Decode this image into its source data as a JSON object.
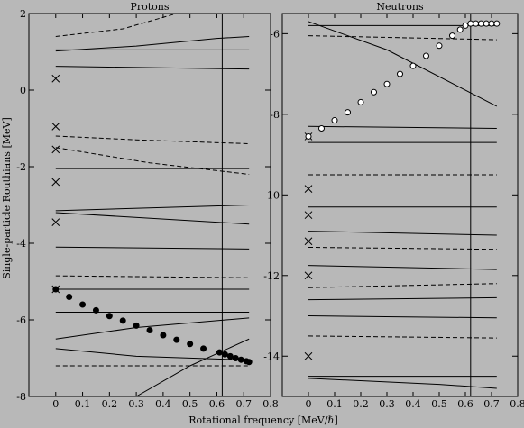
{
  "chart_data": [
    {
      "type": "line",
      "title": "Protons",
      "xlabel": "Rotational frequency [MeV/ℏ]",
      "ylabel": "Single-particle Routhians [MeV]",
      "xlim": [
        -0.1,
        0.8
      ],
      "ylim": [
        -8,
        2
      ],
      "xticks": [
        "0",
        "0.1",
        "0.2",
        "0.3",
        "0.4",
        "0.5",
        "0.6",
        "0.7",
        "0.8"
      ],
      "yticks": [
        "2",
        "0",
        "-2",
        "-4",
        "-6",
        "-8"
      ],
      "grid": false,
      "vline_x": 0.62,
      "series": [
        {
          "style": "solid",
          "x": [
            0,
            0.72
          ],
          "y": [
            1.05,
            1.05
          ]
        },
        {
          "style": "solid",
          "x": [
            0,
            0.72
          ],
          "y": [
            0.62,
            0.55
          ]
        },
        {
          "style": "solid",
          "x": [
            0,
            0.3,
            0.6,
            0.72
          ],
          "y": [
            1.02,
            1.15,
            1.35,
            1.4
          ]
        },
        {
          "style": "solid",
          "x": [
            0,
            0.72
          ],
          "y": [
            -2.05,
            -2.05
          ]
        },
        {
          "style": "solid",
          "x": [
            0,
            0.72
          ],
          "y": [
            -3.15,
            -3.0
          ]
        },
        {
          "style": "solid",
          "x": [
            0,
            0.72
          ],
          "y": [
            -3.2,
            -3.5
          ]
        },
        {
          "style": "solid",
          "x": [
            0,
            0.72
          ],
          "y": [
            -4.1,
            -4.15
          ]
        },
        {
          "style": "solid",
          "x": [
            0,
            0.72
          ],
          "y": [
            -5.2,
            -5.2
          ]
        },
        {
          "style": "solid",
          "x": [
            0,
            0.72
          ],
          "y": [
            -5.8,
            -5.8
          ]
        },
        {
          "style": "solid",
          "x": [
            0,
            0.3,
            0.72
          ],
          "y": [
            -6.5,
            -6.2,
            -5.95
          ]
        },
        {
          "style": "solid",
          "x": [
            0,
            0.3,
            0.72
          ],
          "y": [
            -6.75,
            -6.95,
            -7.05
          ]
        },
        {
          "style": "solid",
          "x": [
            0.3,
            0.5,
            0.72
          ],
          "y": [
            -8.0,
            -7.2,
            -6.5
          ]
        },
        {
          "style": "dashed",
          "x": [
            0,
            0.72
          ],
          "y": [
            -7.2,
            -7.2
          ]
        },
        {
          "style": "dashed",
          "x": [
            0,
            0.3,
            0.72
          ],
          "y": [
            -1.2,
            -1.3,
            -1.4
          ]
        },
        {
          "style": "dashed",
          "x": [
            0,
            0.72
          ],
          "y": [
            -4.85,
            -4.9
          ]
        },
        {
          "style": "dashed",
          "x": [
            0,
            0.25,
            0.45
          ],
          "y": [
            1.4,
            1.6,
            2.0
          ]
        },
        {
          "style": "dashed",
          "x": [
            0,
            0.35,
            0.72
          ],
          "y": [
            -1.5,
            -1.9,
            -2.2
          ]
        }
      ],
      "markers": {
        "style": "filled",
        "x": [
          0,
          0.05,
          0.1,
          0.15,
          0.2,
          0.25,
          0.3,
          0.35,
          0.4,
          0.45,
          0.5,
          0.55,
          0.61,
          0.63,
          0.65,
          0.67,
          0.69,
          0.71,
          0.72
        ],
        "y": [
          -5.2,
          -5.4,
          -5.6,
          -5.75,
          -5.9,
          -6.02,
          -6.15,
          -6.27,
          -6.4,
          -6.52,
          -6.63,
          -6.75,
          -6.85,
          -6.9,
          -6.95,
          -7.0,
          -7.04,
          -7.08,
          -7.1
        ]
      },
      "crosses": {
        "x": [
          0,
          0,
          0,
          0,
          0,
          0
        ],
        "y": [
          0.3,
          -0.95,
          -1.55,
          -2.4,
          -3.45,
          -5.2
        ]
      }
    },
    {
      "type": "line",
      "title": "Neutrons",
      "xlim": [
        -0.1,
        0.8
      ],
      "ylim": [
        -15,
        -5.5
      ],
      "xticks": [
        "0",
        "0.1",
        "0.2",
        "0.3",
        "0.4",
        "0.5",
        "0.6",
        "0.7",
        "0.8"
      ],
      "yticks": [
        "-6",
        "-8",
        "-10",
        "-12",
        "-14"
      ],
      "grid": false,
      "vline_x": 0.62,
      "series": [
        {
          "style": "solid",
          "x": [
            0,
            0.72
          ],
          "y": [
            -5.8,
            -5.8
          ]
        },
        {
          "style": "solid",
          "x": [
            0,
            0.3,
            0.72
          ],
          "y": [
            -5.7,
            -6.4,
            -7.8
          ]
        },
        {
          "style": "solid",
          "x": [
            0,
            0.72
          ],
          "y": [
            -8.3,
            -8.35
          ]
        },
        {
          "style": "solid",
          "x": [
            0,
            0.72
          ],
          "y": [
            -8.7,
            -8.7
          ]
        },
        {
          "style": "solid",
          "x": [
            0,
            0.72
          ],
          "y": [
            -10.3,
            -10.3
          ]
        },
        {
          "style": "solid",
          "x": [
            0,
            0.72
          ],
          "y": [
            -10.9,
            -11.0
          ]
        },
        {
          "style": "solid",
          "x": [
            0,
            0.72
          ],
          "y": [
            -11.75,
            -11.85
          ]
        },
        {
          "style": "solid",
          "x": [
            0,
            0.72
          ],
          "y": [
            -12.6,
            -12.55
          ]
        },
        {
          "style": "solid",
          "x": [
            0,
            0.72
          ],
          "y": [
            -13.0,
            -13.05
          ]
        },
        {
          "style": "solid",
          "x": [
            0,
            0.72
          ],
          "y": [
            -14.5,
            -14.5
          ]
        },
        {
          "style": "solid",
          "x": [
            0,
            0.5,
            0.72
          ],
          "y": [
            -14.55,
            -14.7,
            -14.8
          ]
        },
        {
          "style": "dashed",
          "x": [
            0,
            0.72
          ],
          "y": [
            -6.05,
            -6.15
          ]
        },
        {
          "style": "dashed",
          "x": [
            0,
            0.72
          ],
          "y": [
            -9.5,
            -9.5
          ]
        },
        {
          "style": "dashed",
          "x": [
            0,
            0.72
          ],
          "y": [
            -11.3,
            -11.35
          ]
        },
        {
          "style": "dashed",
          "x": [
            0,
            0.72
          ],
          "y": [
            -12.3,
            -12.2
          ]
        },
        {
          "style": "dashed",
          "x": [
            0,
            0.72
          ],
          "y": [
            -13.5,
            -13.55
          ]
        }
      ],
      "markers": {
        "style": "open",
        "x": [
          0,
          0.05,
          0.1,
          0.15,
          0.2,
          0.25,
          0.3,
          0.35,
          0.4,
          0.45,
          0.5,
          0.55,
          0.58,
          0.6,
          0.62,
          0.64,
          0.66,
          0.68,
          0.7,
          0.72
        ],
        "y": [
          -8.55,
          -8.35,
          -8.15,
          -7.95,
          -7.7,
          -7.45,
          -7.25,
          -7.0,
          -6.8,
          -6.55,
          -6.3,
          -6.05,
          -5.9,
          -5.8,
          -5.75,
          -5.75,
          -5.75,
          -5.75,
          -5.75,
          -5.75
        ]
      },
      "crosses": {
        "x": [
          0,
          0,
          0,
          0,
          0,
          0
        ],
        "y": [
          -8.55,
          -9.85,
          -10.5,
          -11.15,
          -12.0,
          -14.0
        ]
      }
    }
  ]
}
